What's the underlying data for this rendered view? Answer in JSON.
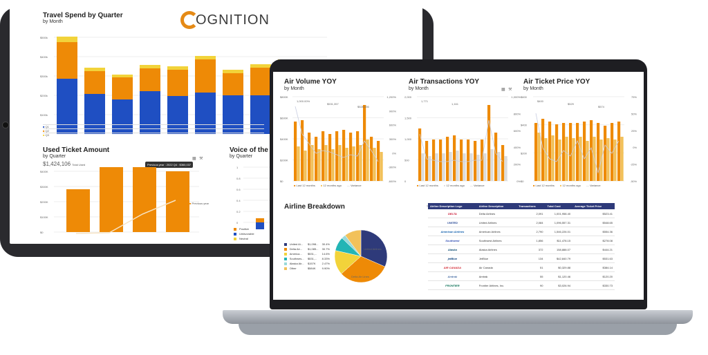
{
  "brand": {
    "logo_letter": "C",
    "logo_rest": "OGNITION"
  },
  "colors": {
    "blue": "#1f4fc2",
    "orange": "#ee8a06",
    "yellow": "#f2d33a",
    "navy": "#2e3a7a",
    "grey": "#d8d8d8"
  },
  "tablet": {
    "travel": {
      "title": "Travel Spend by Quarter",
      "subtitle": "by Month",
      "yticks": [
        "$500k",
        "$400k",
        "$300k",
        "$200k",
        "$100k"
      ],
      "table_rows": [
        "Q1",
        "Q2",
        "Q3"
      ]
    },
    "ticket": {
      "title": "Used Ticket Amount",
      "subtitle": "by Quarter",
      "big_value": "$1,424,106",
      "big_value_note": "Total Used",
      "tooltip": "Previous year : 2022 Q4 : $360,037",
      "legend": "Previous year",
      "yticks": [
        "$400K",
        "$300K",
        "$200K",
        "$100K",
        "$0"
      ]
    },
    "voice": {
      "title": "Voice of the Cu",
      "subtitle": "by Quarter",
      "yticks": [
        "1",
        "0.8",
        "0.6",
        "0.4",
        "0.2",
        "0"
      ],
      "legend": [
        "Positive",
        "Unfavorable",
        "Neutral"
      ]
    }
  },
  "laptop": {
    "volume": {
      "title": "Air Volume YOY",
      "subtitle": "by Month",
      "left_ticks": [
        "$800K",
        "$600K",
        "$400K",
        "$200K",
        "$0"
      ],
      "right_ticks": [
        "1,200%",
        "900%",
        "600%",
        "300%",
        "0%",
        "-300%",
        "-600%"
      ],
      "labels": [
        "1,000.00%",
        "$531,357",
        "$528,336"
      ],
      "legend": [
        "Last 12 months",
        "12 months ago",
        "Variance"
      ]
    },
    "transactions": {
      "title": "Air Transactions YOY",
      "subtitle": "by Month",
      "left_ticks": [
        "2,000",
        "1,500",
        "1,000",
        "500",
        "0"
      ],
      "right_ticks": [
        "1,000%",
        "800%",
        "600%",
        "400%",
        "200%",
        "0%"
      ],
      "labels": [
        "1,771",
        "1,161"
      ],
      "legend": [
        "Last 12 months",
        "12 months ago",
        "Variance"
      ]
    },
    "price": {
      "title": "Air Ticket Price YOY",
      "subtitle": "by Month",
      "left_ticks": [
        "$600",
        "$400",
        "$200",
        "$0"
      ],
      "right_ticks": [
        "75%",
        "50%",
        "25%",
        "0%",
        "-25%",
        "-50%"
      ],
      "labels": [
        "$400",
        "$529",
        "$574"
      ],
      "legend": [
        "Last 12 months",
        "12 months ago",
        "Variance"
      ]
    },
    "breakdown": {
      "title": "Airline Breakdown",
      "legend": [
        {
          "name": "United Ai...",
          "value": "$1,098...",
          "pct": "30.4%"
        },
        {
          "name": "Delta Air...",
          "value": "$1,085...",
          "pct": "30.7%"
        },
        {
          "name": "America...",
          "value": "$531,...",
          "pct": "14.6%"
        },
        {
          "name": "Southwes...",
          "value": "$531,...",
          "pct": "8.33%"
        },
        {
          "name": "Alaska Air...",
          "value": "$157K",
          "pct": "2.47%"
        },
        {
          "name": "Other",
          "value": "$584K",
          "pct": "9.90%"
        }
      ],
      "pie_slices": [
        30.4,
        30.7,
        14.6,
        8.33,
        2.47,
        9.9
      ],
      "pie_labels": [
        "United Airlines",
        "Delta Air Lines"
      ]
    },
    "table": {
      "headers": [
        "Airline Description Logo",
        "Airline Description",
        "Transactions",
        "Total Cost",
        "Average Ticket Price"
      ],
      "rows": [
        {
          "logo": "DELTA",
          "name": "Delta Airlines",
          "tx": "2,091",
          "cost": "1,001,958.40",
          "avg": "$523.41"
        },
        {
          "logo": "UNITED",
          "name": "United Airlines",
          "tx": "2,084",
          "cost": "1,096,557.31",
          "avg": "$548.65"
        },
        {
          "logo": "American Airlines",
          "name": "American Airlines",
          "tx": "2,790",
          "cost": "1,546,226.01",
          "avg": "$554.36"
        },
        {
          "logo": "Southwest",
          "name": "Southwest Airlines",
          "tx": "1,856",
          "cost": "$11,478.15",
          "avg": "$278.08"
        },
        {
          "logo": "Alaska",
          "name": "Alaska Airlines",
          "tx": "372",
          "cost": "158,888.07",
          "avg": "$444.21"
        },
        {
          "logo": "jetBlue",
          "name": "JetBlue",
          "tx": "134",
          "cost": "$42,840.79",
          "avg": "$531.63"
        },
        {
          "logo": "AIR CANADA",
          "name": "Air Canada",
          "tx": "51",
          "cost": "$0,329.88",
          "avg": "$384.14"
        },
        {
          "logo": "Amtrak",
          "name": "Amtrak",
          "tx": "55",
          "cost": "$1,120.46",
          "avg": "$120.20"
        },
        {
          "logo": "FRONTIER",
          "name": "Frontier Airlines, Inc.",
          "tx": "90",
          "cost": "$3,026.94",
          "avg": "$330.73"
        }
      ]
    }
  }
}
